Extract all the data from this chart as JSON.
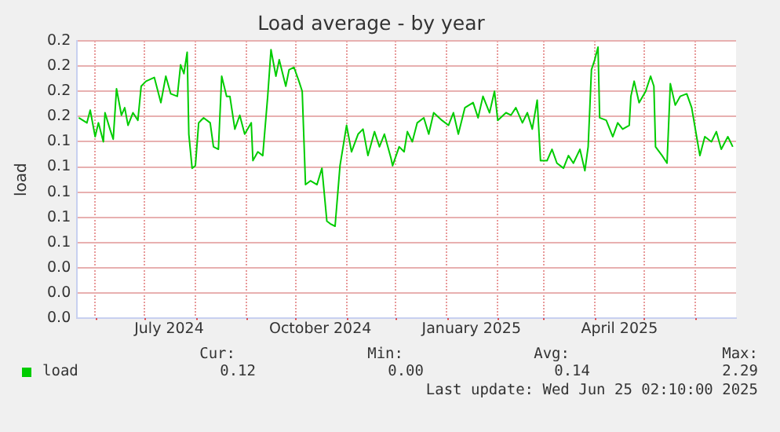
{
  "chart_data": {
    "type": "line",
    "title": "Load average - by year",
    "ylabel": "load",
    "xlim": [
      "2024-05-21",
      "2025-06-26"
    ],
    "xticks": [
      {
        "value": "2024-06-01",
        "label": null
      },
      {
        "value": "2024-07-01",
        "label": null
      },
      {
        "value": "2024-07-16",
        "label": "July 2024"
      },
      {
        "value": "2024-08-01",
        "label": null
      },
      {
        "value": "2024-09-01",
        "label": null
      },
      {
        "value": "2024-10-01",
        "label": null
      },
      {
        "value": "2024-10-16",
        "label": "October 2024"
      },
      {
        "value": "2024-11-01",
        "label": null
      },
      {
        "value": "2024-12-01",
        "label": null
      },
      {
        "value": "2025-01-01",
        "label": null
      },
      {
        "value": "2025-01-16",
        "label": "January 2025"
      },
      {
        "value": "2025-02-01",
        "label": null
      },
      {
        "value": "2025-03-01",
        "label": null
      },
      {
        "value": "2025-04-01",
        "label": null
      },
      {
        "value": "2025-04-16",
        "label": "April 2025"
      },
      {
        "value": "2025-05-01",
        "label": null
      },
      {
        "value": "2025-06-01",
        "label": null
      }
    ],
    "ylim": [
      0,
      0.22
    ],
    "yticks": [
      {
        "value": 0,
        "label": "0.0"
      },
      {
        "value": 0.02,
        "label": "0.0"
      },
      {
        "value": 0.04,
        "label": "0.0"
      },
      {
        "value": 0.06,
        "label": "0.1"
      },
      {
        "value": 0.08,
        "label": "0.1"
      },
      {
        "value": 0.1,
        "label": "0.1"
      },
      {
        "value": 0.12,
        "label": "0.1"
      },
      {
        "value": 0.14,
        "label": "0.1"
      },
      {
        "value": 0.16,
        "label": "0.2"
      },
      {
        "value": 0.18,
        "label": "0.2"
      },
      {
        "value": 0.2,
        "label": "0.2"
      },
      {
        "value": 0.22,
        "label": "0.2"
      }
    ],
    "grid": true,
    "legend": "bottom",
    "marker": "none",
    "line_style": "solid",
    "annotations": [
      "Cur:",
      "Min:",
      "Avg:",
      "Max:",
      "0.12",
      "0.00",
      "0.14",
      "2.29",
      "Last update: Wed Jun 25 02:10:00 2025"
    ],
    "series": [
      {
        "name": "load",
        "color": "#00cc00",
        "x": [
          "2024-05-22",
          "2024-05-27",
          "2024-05-29",
          "2024-06-01",
          "2024-06-03",
          "2024-06-06",
          "2024-06-07",
          "2024-06-10",
          "2024-06-12",
          "2024-06-14",
          "2024-06-17",
          "2024-06-19",
          "2024-06-21",
          "2024-06-24",
          "2024-06-27",
          "2024-06-29",
          "2024-07-02",
          "2024-07-07",
          "2024-07-11",
          "2024-07-14",
          "2024-07-17",
          "2024-07-21",
          "2024-07-23",
          "2024-07-25",
          "2024-07-27",
          "2024-07-28",
          "2024-07-30",
          "2024-08-01",
          "2024-08-03",
          "2024-08-06",
          "2024-08-10",
          "2024-08-12",
          "2024-08-15",
          "2024-08-17",
          "2024-08-20",
          "2024-08-22",
          "2024-08-25",
          "2024-08-28",
          "2024-08-31",
          "2024-09-04",
          "2024-09-05",
          "2024-09-08",
          "2024-09-11",
          "2024-09-14",
          "2024-09-16",
          "2024-09-19",
          "2024-09-21",
          "2024-09-25",
          "2024-09-27",
          "2024-09-30",
          "2024-10-03",
          "2024-10-05",
          "2024-10-07",
          "2024-10-10",
          "2024-10-14",
          "2024-10-17",
          "2024-10-20",
          "2024-10-22",
          "2024-10-25",
          "2024-10-28",
          "2024-11-01",
          "2024-11-04",
          "2024-11-08",
          "2024-11-11",
          "2024-11-14",
          "2024-11-18",
          "2024-11-21",
          "2024-11-24",
          "2024-11-28",
          "2024-11-29",
          "2024-12-03",
          "2024-12-06",
          "2024-12-08",
          "2024-12-11",
          "2024-12-14",
          "2024-12-18",
          "2024-12-21",
          "2024-12-24",
          "2024-12-29",
          "2025-01-02",
          "2025-01-05",
          "2025-01-08",
          "2025-01-12",
          "2025-01-17",
          "2025-01-20",
          "2025-01-23",
          "2025-01-27",
          "2025-01-30",
          "2025-02-01",
          "2025-02-06",
          "2025-02-09",
          "2025-02-12",
          "2025-02-16",
          "2025-02-19",
          "2025-02-22",
          "2025-02-25",
          "2025-02-27",
          "2025-03-03",
          "2025-03-06",
          "2025-03-09",
          "2025-03-13",
          "2025-03-16",
          "2025-03-19",
          "2025-03-23",
          "2025-03-26",
          "2025-03-28",
          "2025-03-30",
          "2025-04-01",
          "2025-04-03",
          "2025-04-04",
          "2025-04-08",
          "2025-04-12",
          "2025-04-15",
          "2025-04-18",
          "2025-04-22",
          "2025-04-23",
          "2025-04-25",
          "2025-04-28",
          "2025-05-02",
          "2025-05-05",
          "2025-05-07",
          "2025-05-08",
          "2025-05-12",
          "2025-05-15",
          "2025-05-17",
          "2025-05-20",
          "2025-05-23",
          "2025-05-27",
          "2025-05-30",
          "2025-06-02",
          "2025-06-04",
          "2025-06-07",
          "2025-06-11",
          "2025-06-14",
          "2025-06-17",
          "2025-06-21",
          "2025-06-24"
        ],
        "values": [
          0.159,
          0.155,
          0.165,
          0.144,
          0.155,
          0.14,
          0.163,
          0.15,
          0.142,
          0.182,
          0.161,
          0.167,
          0.153,
          0.163,
          0.157,
          0.184,
          0.188,
          0.191,
          0.171,
          0.192,
          0.178,
          0.176,
          0.201,
          0.194,
          0.211,
          0.146,
          0.119,
          0.121,
          0.155,
          0.159,
          0.155,
          0.136,
          0.134,
          0.192,
          0.176,
          0.176,
          0.15,
          0.161,
          0.146,
          0.155,
          0.125,
          0.132,
          0.129,
          0.176,
          0.213,
          0.192,
          0.205,
          0.184,
          0.197,
          0.199,
          0.188,
          0.18,
          0.106,
          0.109,
          0.106,
          0.119,
          0.077,
          0.075,
          0.073,
          0.121,
          0.153,
          0.132,
          0.146,
          0.15,
          0.129,
          0.148,
          0.136,
          0.146,
          0.127,
          0.121,
          0.136,
          0.132,
          0.148,
          0.14,
          0.155,
          0.159,
          0.146,
          0.163,
          0.157,
          0.153,
          0.163,
          0.146,
          0.167,
          0.171,
          0.159,
          0.176,
          0.163,
          0.18,
          0.157,
          0.163,
          0.161,
          0.167,
          0.155,
          0.163,
          0.15,
          0.173,
          0.125,
          0.125,
          0.134,
          0.123,
          0.119,
          0.129,
          0.123,
          0.134,
          0.117,
          0.136,
          0.197,
          0.205,
          0.215,
          0.159,
          0.157,
          0.144,
          0.155,
          0.15,
          0.153,
          0.176,
          0.188,
          0.171,
          0.18,
          0.192,
          0.184,
          0.136,
          0.129,
          0.123,
          0.186,
          0.169,
          0.176,
          0.178,
          0.167,
          0.144,
          0.129,
          0.144,
          0.14,
          0.148,
          0.134,
          0.144,
          0.136
        ]
      }
    ]
  }
}
